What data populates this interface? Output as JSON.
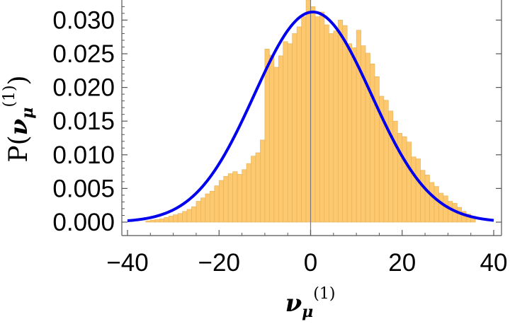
{
  "chart_data": {
    "type": "bar",
    "title": "",
    "xlabel": {
      "symbol": "ν",
      "subscript": "μ",
      "superscript": "(1)"
    },
    "ylabel": {
      "prefix": "P(",
      "symbol": "ν",
      "subscript": "μ",
      "superscript": "(1)",
      "suffix": ")"
    },
    "xlim": [
      -40,
      40
    ],
    "ylim": [
      0,
      0.0325
    ],
    "xticks": [
      -40,
      -20,
      0,
      20,
      40
    ],
    "xtick_labels": [
      "−40",
      "−20",
      "0",
      "20",
      "40"
    ],
    "yticks": [
      0.0,
      0.005,
      0.01,
      0.015,
      0.02,
      0.025,
      0.03
    ],
    "ytick_labels": [
      "0.000",
      "0.005",
      "0.010",
      "0.015",
      "0.020",
      "0.025",
      "0.030"
    ],
    "grid": false,
    "histogram": {
      "name": "",
      "color": "#fdc86e",
      "edge_color": "#e2b15a",
      "bin_start": -36,
      "bin_width": 1,
      "values": [
        0.0002,
        0.0003,
        0.0004,
        0.0005,
        0.0007,
        0.0009,
        0.0011,
        0.0013,
        0.0016,
        0.0019,
        0.0023,
        0.0031,
        0.0036,
        0.0042,
        0.0046,
        0.0054,
        0.0062,
        0.0068,
        0.0072,
        0.0075,
        0.0071,
        0.0078,
        0.0087,
        0.0098,
        0.0103,
        0.0122,
        0.0257,
        0.0248,
        0.023,
        0.0247,
        0.0268,
        0.0265,
        0.028,
        0.029,
        0.0305,
        0.033,
        0.032,
        0.0305,
        0.0312,
        0.0293,
        0.028,
        0.0284,
        0.03,
        0.0292,
        0.0265,
        0.0259,
        0.0285,
        0.0262,
        0.0251,
        0.0235,
        0.0216,
        0.0187,
        0.0181,
        0.0165,
        0.015,
        0.0132,
        0.0127,
        0.0119,
        0.0097,
        0.0094,
        0.0077,
        0.007,
        0.0059,
        0.0053,
        0.0043,
        0.0039,
        0.0031,
        0.0028,
        0.0022,
        0.0016,
        0.0012,
        0.0009
      ]
    },
    "curve": {
      "name": "",
      "color": "#0000ee",
      "type": "gaussian",
      "mean": 0.5,
      "sd": 12.8,
      "peak": 0.0312,
      "x_range": [
        -40,
        40
      ]
    },
    "vertical_line": {
      "x": 0,
      "color": "#777777"
    }
  }
}
